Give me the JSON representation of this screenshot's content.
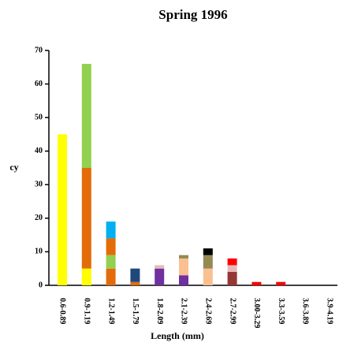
{
  "chart_data": {
    "type": "stacked_bar",
    "title": "Spring 1996",
    "x_label": "Length (mm)",
    "y_label": "cy",
    "categories": [
      "0.6-0.89",
      "0.9-1.19",
      "1.2-1.49",
      "1.5-1.79",
      "1.8-2.09",
      "2.1-2.39",
      "2.4-2.69",
      "2.7-2.99",
      "3.00-3.29",
      "3.3-3.59",
      "3.6-3.89",
      "3.9-4.19"
    ],
    "series": [
      {
        "color": "#ffff00",
        "values": [
          45,
          5,
          0,
          0,
          0,
          0,
          0,
          0,
          0,
          0,
          0,
          0
        ]
      },
      {
        "color": "#e36c09",
        "values": [
          0,
          30,
          5,
          1,
          0,
          0,
          0,
          0,
          0,
          0,
          0,
          0
        ]
      },
      {
        "color": "#92d050",
        "values": [
          0,
          31,
          4,
          0,
          0,
          0,
          0,
          0,
          0,
          0,
          0,
          0
        ]
      },
      {
        "color": "#e36c09",
        "values": [
          0,
          0,
          5,
          0,
          0,
          0,
          0,
          0,
          0,
          0,
          0,
          0
        ]
      },
      {
        "color": "#00b0f0",
        "values": [
          0,
          0,
          5,
          0,
          0,
          0,
          0,
          0,
          0,
          0,
          0,
          0
        ]
      },
      {
        "color": "#1f497d",
        "values": [
          0,
          0,
          0,
          4,
          0,
          0,
          0,
          0,
          0,
          0,
          0,
          0
        ]
      },
      {
        "color": "#7030a0",
        "values": [
          0,
          0,
          0,
          0,
          5,
          3,
          0,
          0,
          0,
          0,
          0,
          0
        ]
      },
      {
        "color": "#953735",
        "values": [
          0,
          0,
          0,
          0,
          0,
          0,
          0,
          4,
          0,
          0,
          0,
          0
        ]
      },
      {
        "color": "#fac090",
        "values": [
          0,
          0,
          0,
          0,
          0,
          5,
          5,
          0,
          0,
          0,
          0,
          0
        ]
      },
      {
        "color": "#e6b9b8",
        "values": [
          0,
          0,
          0,
          0,
          1,
          0,
          0,
          2,
          0,
          0,
          0,
          0
        ]
      },
      {
        "color": "#948a54",
        "values": [
          0,
          0,
          0,
          0,
          0,
          1,
          4,
          0,
          0,
          0,
          0,
          0
        ]
      },
      {
        "color": "#000000",
        "values": [
          0,
          0,
          0,
          0,
          0,
          0,
          2,
          0,
          0,
          0,
          0,
          0
        ]
      },
      {
        "color": "#ff0000",
        "values": [
          0,
          0,
          0,
          0,
          0,
          0,
          0,
          2,
          1,
          1,
          0,
          0
        ]
      }
    ],
    "ylim": [
      0,
      70
    ],
    "yticks": [
      0,
      10,
      20,
      30,
      40,
      50,
      60,
      70
    ]
  }
}
